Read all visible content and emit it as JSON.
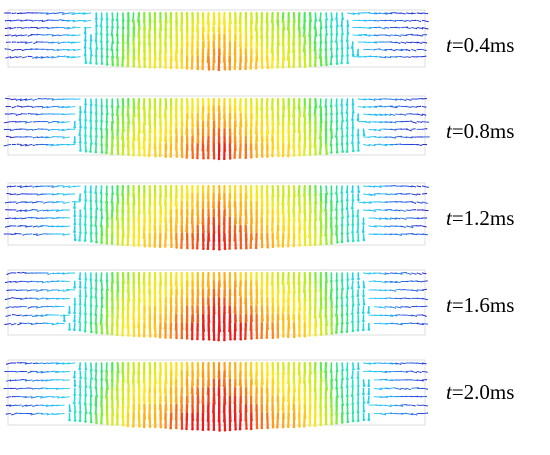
{
  "figure": {
    "panels": [
      {
        "id": "p1",
        "time_prefix": "t",
        "time_value": "=0.4ms",
        "intensity": 0.55
      },
      {
        "id": "p2",
        "time_prefix": "t",
        "time_value": "=0.8ms",
        "intensity": 0.75
      },
      {
        "id": "p3",
        "time_prefix": "t",
        "time_value": "=1.2ms",
        "intensity": 0.85
      },
      {
        "id": "p4",
        "time_prefix": "t",
        "time_value": "=1.6ms",
        "intensity": 0.95
      },
      {
        "id": "p5",
        "time_prefix": "t",
        "time_value": "=2.0ms",
        "intensity": 1.0
      }
    ],
    "colormap": [
      "#1a1ad0",
      "#1fb5ff",
      "#22e2d8",
      "#2ee86a",
      "#b6ee1e",
      "#ffe81a",
      "#ff9a1a",
      "#f01a1a"
    ]
  }
}
